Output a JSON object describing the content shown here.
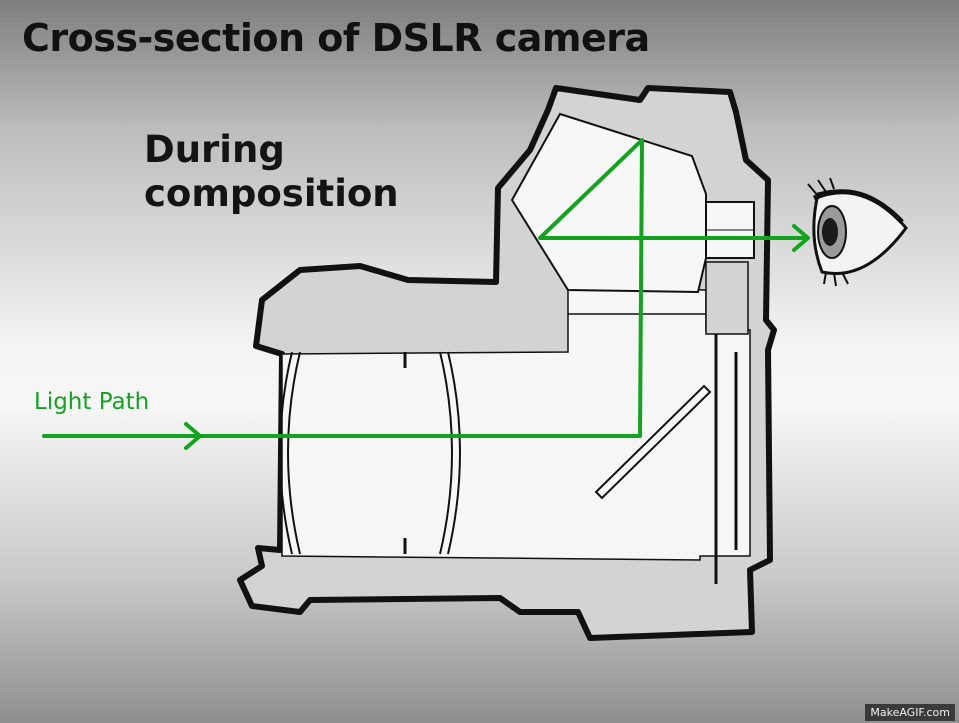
{
  "title": "Cross-section of DSLR camera",
  "subtitle_line1": "During",
  "subtitle_line2": "composition",
  "light_path_label": "Light Path",
  "watermark": "MakeAGIF.com",
  "colors": {
    "light_path": "#13a41f",
    "camera_body": "#d3d3d3",
    "outline": "#111111",
    "interior": "#f6f6f6"
  },
  "icons": [
    "eye-icon",
    "arrow-right-icon"
  ]
}
